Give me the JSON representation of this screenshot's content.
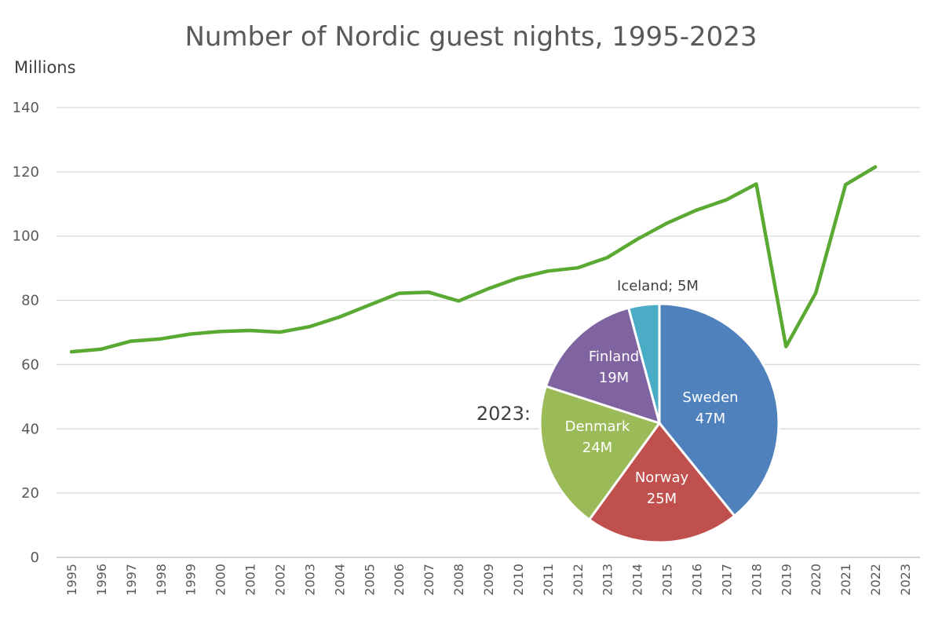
{
  "chart_data": [
    {
      "type": "line",
      "title": "Number of Nordic guest nights, 1995-2023",
      "ylabel": "Millions",
      "xlabel": "",
      "ylim": [
        0,
        140
      ],
      "yticks": [
        0,
        20,
        40,
        60,
        80,
        100,
        120,
        140
      ],
      "grid": true,
      "categories": [
        "1995",
        "1996",
        "1997",
        "1998",
        "1999",
        "2000",
        "2001",
        "2002",
        "2003",
        "2004",
        "2005",
        "2006",
        "2007",
        "2008",
        "2009",
        "2010",
        "2011",
        "2012",
        "2013",
        "2014",
        "2015",
        "2016",
        "2017",
        "2018",
        "2019",
        "2020",
        "2021",
        "2022",
        "2023"
      ],
      "series": [
        {
          "color": "#5aa933",
          "values": [
            64.0,
            64.8,
            67.3,
            68.0,
            69.5,
            70.3,
            70.6,
            70.1,
            71.8,
            74.8,
            78.5,
            82.2,
            82.5,
            79.8,
            83.6,
            86.9,
            89.1,
            90.1,
            93.3,
            99.0,
            104.0,
            108.1,
            111.3,
            116.2,
            65.6,
            82.3,
            116.0,
            121.5,
            null
          ]
        }
      ]
    },
    {
      "type": "pie",
      "inset_label": "2023:",
      "slices": [
        {
          "name": "Sweden",
          "value": 47,
          "label_line1": "Sweden",
          "label_line2": "47M",
          "color": "#4f81bd"
        },
        {
          "name": "Norway",
          "value": 25,
          "label_line1": "Norway",
          "label_line2": "25M",
          "color": "#c0504d"
        },
        {
          "name": "Denmark",
          "value": 24,
          "label_line1": "Denmark",
          "label_line2": "24M",
          "color": "#9bbb59"
        },
        {
          "name": "Finland",
          "value": 19,
          "label_line1": "Finland",
          "label_line2": "19M",
          "color": "#8064a2"
        },
        {
          "name": "Iceland",
          "value": 5,
          "label_line1": "Iceland; 5M",
          "label_line2": "",
          "color": "#4bacc6"
        }
      ]
    }
  ]
}
